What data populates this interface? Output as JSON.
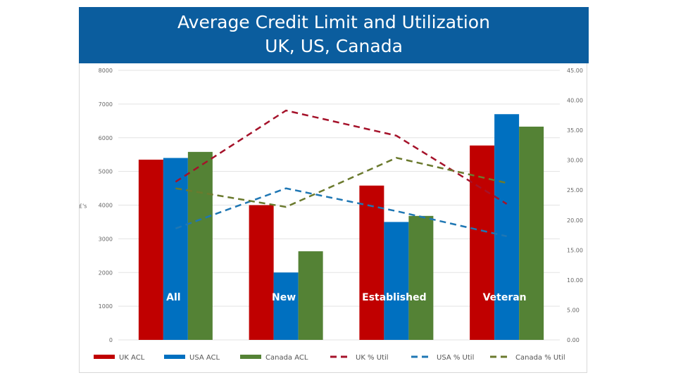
{
  "chart_data": {
    "type": "bar",
    "title": "Average Credit Limit and Utilization",
    "subtitle": "UK, US, Canada",
    "ylabel": "£'s",
    "ylim": [
      0,
      8000
    ],
    "y2lim": [
      0,
      45
    ],
    "yticks": [
      "0",
      "1000",
      "2000",
      "3000",
      "4000",
      "5000",
      "6000",
      "7000",
      "8000"
    ],
    "y2ticks": [
      "0.00",
      "5.00",
      "10.00",
      "15.00",
      "20.00",
      "25.00",
      "30.00",
      "35.00",
      "40.00",
      "45.00"
    ],
    "grid": true,
    "legend_position": "bottom",
    "categories": [
      "All",
      "New",
      "Established",
      "Veteran"
    ],
    "bar_series": [
      {
        "name": "UK ACL",
        "color": "#c00000",
        "values": [
          5350,
          4000,
          4580,
          5770
        ]
      },
      {
        "name": "USA ACL",
        "color": "#0070c0",
        "values": [
          5400,
          2000,
          3500,
          6700
        ]
      },
      {
        "name": "Canada ACL",
        "color": "#548235",
        "values": [
          5580,
          2630,
          3680,
          6330
        ]
      }
    ],
    "line_series": [
      {
        "name": "UK % Util",
        "color": "#a5122a",
        "axis": "right",
        "style": "dashed",
        "values": [
          26.4,
          38.3,
          34.1,
          22.7
        ]
      },
      {
        "name": "USA % Util",
        "color": "#1f77b4",
        "axis": "right",
        "style": "dashed",
        "values": [
          18.6,
          25.3,
          21.5,
          17.3
        ]
      },
      {
        "name": "Canada % Util",
        "color": "#6b7a2e",
        "axis": "right",
        "style": "dashed",
        "values": [
          25.3,
          22.2,
          30.4,
          26.2
        ]
      }
    ]
  }
}
